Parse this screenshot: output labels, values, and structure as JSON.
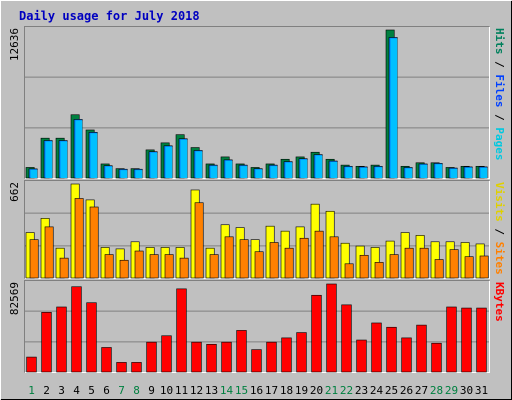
{
  "chart_data": {
    "type": "bar",
    "title": "Daily usage for July 2018",
    "categories": [
      "1",
      "2",
      "3",
      "4",
      "5",
      "6",
      "7",
      "8",
      "9",
      "10",
      "11",
      "12",
      "13",
      "14",
      "15",
      "16",
      "17",
      "18",
      "19",
      "20",
      "21",
      "22",
      "23",
      "24",
      "25",
      "26",
      "27",
      "28",
      "29",
      "30",
      "31"
    ],
    "weekend_days": [
      "1",
      "7",
      "8",
      "14",
      "15",
      "21",
      "22",
      "28",
      "29"
    ],
    "panels": [
      {
        "name": "hits-files-pages",
        "ymax_label": "12636",
        "ylim": [
          0,
          12636
        ],
        "axis_labels": [
          {
            "text": "Pages",
            "color": "#00c8e0"
          },
          {
            "text": " / ",
            "color": "#000000"
          },
          {
            "text": "Files",
            "color": "#0040ff"
          },
          {
            "text": " / ",
            "color": "#000000"
          },
          {
            "text": "Hits",
            "color": "#00805c"
          }
        ],
        "series": [
          {
            "name": "Hits",
            "color": "#008040",
            "values": [
              900,
              3400,
              3400,
              5400,
              4100,
              1200,
              800,
              800,
              2400,
              3000,
              3700,
              2600,
              1200,
              1800,
              1200,
              900,
              1200,
              1600,
              1800,
              2200,
              1600,
              1100,
              1000,
              1100,
              12636,
              1000,
              1300,
              1300,
              900,
              1000,
              1000
            ]
          },
          {
            "name": "Files",
            "color": "#0080ff",
            "values": [
              780,
              3200,
              3200,
              5000,
              3900,
              1050,
              750,
              750,
              2250,
              2750,
              3350,
              2350,
              1100,
              1550,
              1100,
              800,
              1100,
              1400,
              1650,
              2000,
              1450,
              1000,
              950,
              1000,
              12000,
              900,
              1200,
              1250,
              850,
              950,
              950
            ]
          },
          {
            "name": "Pages",
            "color": "#00c0ff",
            "values": [
              780,
              3200,
              3200,
              5000,
              3900,
              1050,
              750,
              750,
              2250,
              2750,
              3350,
              2350,
              1100,
              1550,
              1100,
              800,
              1100,
              1400,
              1650,
              2000,
              1450,
              1000,
              950,
              1000,
              12000,
              900,
              1200,
              1250,
              850,
              950,
              950
            ]
          }
        ]
      },
      {
        "name": "visits-sites",
        "ymax_label": "662",
        "ylim": [
          0,
          662
        ],
        "axis_labels": [
          {
            "text": "Sites",
            "color": "#ff8000"
          },
          {
            "text": " / ",
            "color": "#000000"
          },
          {
            "text": "Visits",
            "color": "#e0d000"
          }
        ],
        "series": [
          {
            "name": "Visits",
            "color": "#ffff00",
            "values": [
              320,
              420,
              210,
              662,
              550,
              215,
              205,
              255,
              215,
              215,
              215,
              620,
              210,
              375,
              355,
              270,
              365,
              330,
              360,
              520,
              470,
              245,
              225,
              215,
              260,
              320,
              300,
              255,
              255,
              250,
              240
            ]
          },
          {
            "name": "Sites",
            "color": "#ff8000",
            "values": [
              270,
              360,
              140,
              560,
              500,
              165,
              125,
              190,
              165,
              165,
              140,
              530,
              165,
              290,
              270,
              185,
              250,
              210,
              280,
              330,
              290,
              100,
              160,
              110,
              165,
              210,
              210,
              130,
              200,
              150,
              155
            ]
          }
        ]
      },
      {
        "name": "kbytes",
        "ymax_label": "82569",
        "ylim": [
          0,
          82569
        ],
        "axis_labels": [
          {
            "text": "KBytes",
            "color": "#ff0000"
          }
        ],
        "series": [
          {
            "name": "KBytes",
            "color": "#ff0000",
            "values": [
              14000,
              56000,
              61000,
              80000,
              65000,
              23000,
              9000,
              9000,
              28000,
              34000,
              78000,
              28000,
              26000,
              28000,
              39000,
              21000,
              28000,
              32000,
              37000,
              72000,
              82569,
              63000,
              30000,
              46000,
              42000,
              32000,
              44000,
              27000,
              61000,
              60000,
              60000
            ]
          }
        ]
      }
    ]
  }
}
